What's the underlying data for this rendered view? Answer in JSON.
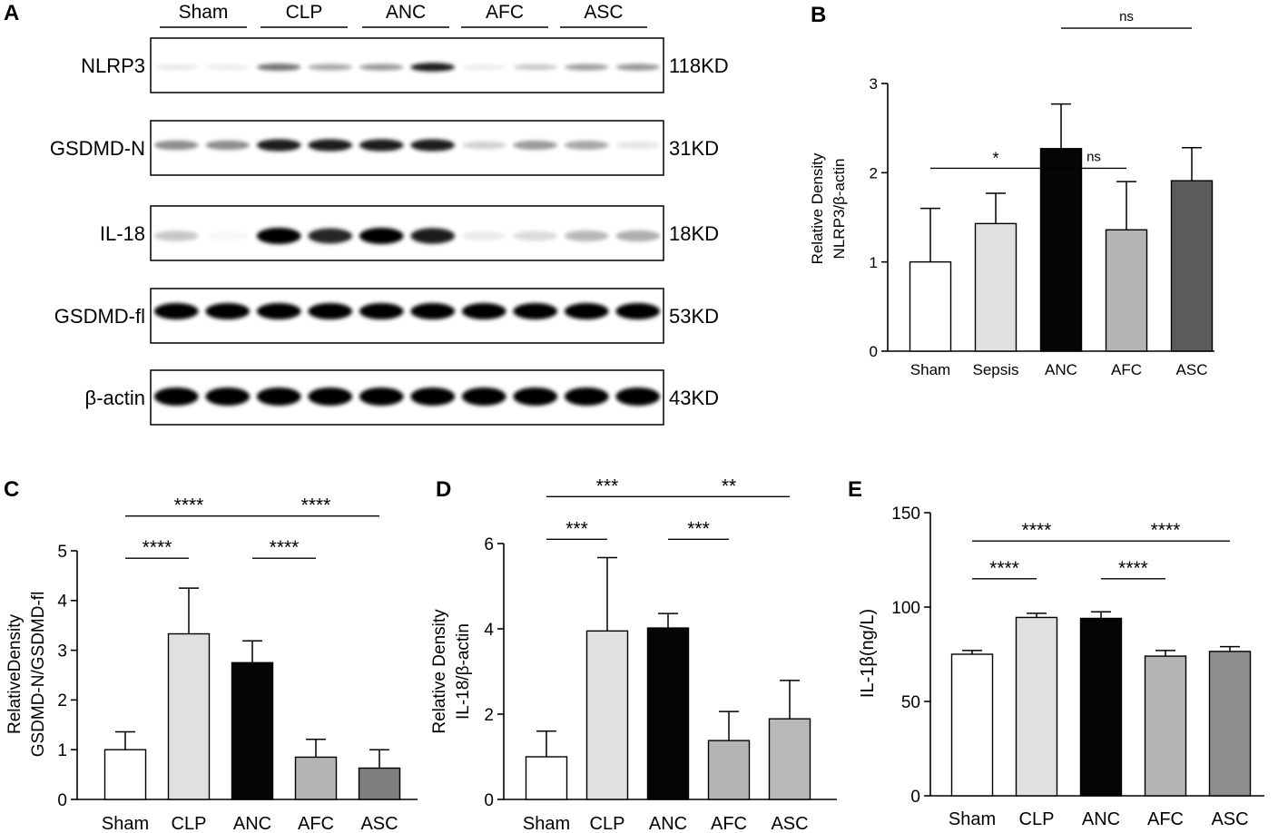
{
  "panel_a": {
    "panel_label": "A",
    "groups": [
      "Sham",
      "CLP",
      "ANC",
      "AFC",
      "ASC"
    ],
    "rows": [
      {
        "label": "NLRP3",
        "size": "118KD",
        "intensity": [
          0.1,
          0.08,
          0.55,
          0.35,
          0.4,
          0.9,
          0.08,
          0.22,
          0.38,
          0.42
        ]
      },
      {
        "label": "GSDMD-N",
        "size": "31KD",
        "intensity": [
          0.45,
          0.45,
          0.9,
          0.9,
          0.9,
          0.9,
          0.18,
          0.4,
          0.35,
          0.1
        ]
      },
      {
        "label": "IL-18",
        "size": "18KD",
        "intensity": [
          0.22,
          0.03,
          1.0,
          0.85,
          1.0,
          0.9,
          0.08,
          0.14,
          0.28,
          0.32
        ]
      },
      {
        "label": "GSDMD-fl",
        "size": "53KD",
        "intensity": [
          1.0,
          1.0,
          1.0,
          1.0,
          1.0,
          1.0,
          1.0,
          1.0,
          1.0,
          1.0
        ]
      },
      {
        "label": "β-actin",
        "size": "43KD",
        "intensity": [
          1.0,
          1.0,
          1.0,
          1.0,
          1.0,
          1.0,
          1.0,
          1.0,
          1.0,
          1.0
        ]
      }
    ]
  },
  "chart_data": [
    {
      "panel": "B",
      "type": "bar",
      "categories": [
        "Sham",
        "Sepsis",
        "ANC",
        "AFC",
        "ASC"
      ],
      "values": [
        1.0,
        1.43,
        2.27,
        1.36,
        1.91
      ],
      "errors": [
        0.6,
        0.34,
        0.5,
        0.54,
        0.37
      ],
      "colors": [
        "#ffffff",
        "#e0e0e0",
        "#050505",
        "#b4b4b4",
        "#5c5c5c"
      ],
      "ylabel": [
        "Relative Density",
        "NLRP3/β-actin"
      ],
      "ylim": [
        0,
        3
      ],
      "yticks": [
        0,
        1,
        2,
        3
      ],
      "significance": [
        {
          "from": "Sham",
          "to": "ANC",
          "label": "*",
          "y": 2.05
        },
        {
          "from": "ANC",
          "to": "AFC",
          "label": "ns",
          "y": 2.05
        },
        {
          "from": "ANC",
          "to": "ASC",
          "label": "ns",
          "y": 3.62
        }
      ]
    },
    {
      "panel": "C",
      "type": "bar",
      "categories": [
        "Sham",
        "CLP",
        "ANC",
        "AFC",
        "ASC"
      ],
      "values": [
        1.0,
        3.33,
        2.75,
        0.85,
        0.63
      ],
      "errors": [
        0.36,
        0.92,
        0.44,
        0.36,
        0.37
      ],
      "colors": [
        "#ffffff",
        "#e0e0e0",
        "#050505",
        "#b4b4b4",
        "#7e7e7e"
      ],
      "ylabel": [
        "RelativeDensity",
        "GSDMD-N/GSDMD-fl"
      ],
      "ylim": [
        0,
        5
      ],
      "yticks": [
        0,
        1,
        2,
        3,
        4,
        5
      ],
      "significance": [
        {
          "from": "Sham",
          "to": "CLP",
          "label": "****",
          "y": 4.85
        },
        {
          "from": "Sham",
          "to": "ANC",
          "label": "****",
          "y": 5.7
        },
        {
          "from": "ANC",
          "to": "AFC",
          "label": "****",
          "y": 4.85
        },
        {
          "from": "ANC",
          "to": "ASC",
          "label": "****",
          "y": 5.7
        }
      ]
    },
    {
      "panel": "D",
      "type": "bar",
      "categories": [
        "Sham",
        "CLP",
        "ANC",
        "AFC",
        "ASC"
      ],
      "values": [
        1.0,
        3.95,
        4.02,
        1.38,
        1.89
      ],
      "errors": [
        0.6,
        1.72,
        0.34,
        0.68,
        0.9
      ],
      "colors": [
        "#ffffff",
        "#e0e0e0",
        "#050505",
        "#b4b4b4",
        "#b8b8b8"
      ],
      "ylabel": [
        "Relative Density",
        "IL-18/β-actin"
      ],
      "ylim": [
        0,
        6
      ],
      "yticks": [
        0,
        2,
        4,
        6
      ],
      "significance": [
        {
          "from": "Sham",
          "to": "CLP",
          "label": "***",
          "y": 6.1
        },
        {
          "from": "Sham",
          "to": "ANC",
          "label": "***",
          "y": 7.1
        },
        {
          "from": "ANC",
          "to": "AFC",
          "label": "***",
          "y": 6.1
        },
        {
          "from": "ANC",
          "to": "ASC",
          "label": "**",
          "y": 7.1
        }
      ]
    },
    {
      "panel": "E",
      "type": "bar",
      "categories": [
        "Sham",
        "CLP",
        "ANC",
        "AFC",
        "ASC"
      ],
      "values": [
        75.0,
        94.5,
        94.0,
        74.0,
        76.5
      ],
      "errors": [
        2.0,
        2.2,
        3.5,
        3.0,
        2.5
      ],
      "colors": [
        "#ffffff",
        "#e0e0e0",
        "#050505",
        "#b4b4b4",
        "#8e8e8e"
      ],
      "ylabel": [
        "IL-1β(ng/L)"
      ],
      "ylim": [
        0,
        150
      ],
      "yticks": [
        0,
        50,
        100,
        150
      ],
      "significance": [
        {
          "from": "Sham",
          "to": "CLP",
          "label": "****",
          "y": 115
        },
        {
          "from": "Sham",
          "to": "ANC",
          "label": "****",
          "y": 135
        },
        {
          "from": "ANC",
          "to": "AFC",
          "label": "****",
          "y": 115
        },
        {
          "from": "ANC",
          "to": "ASC",
          "label": "****",
          "y": 135
        }
      ]
    }
  ]
}
